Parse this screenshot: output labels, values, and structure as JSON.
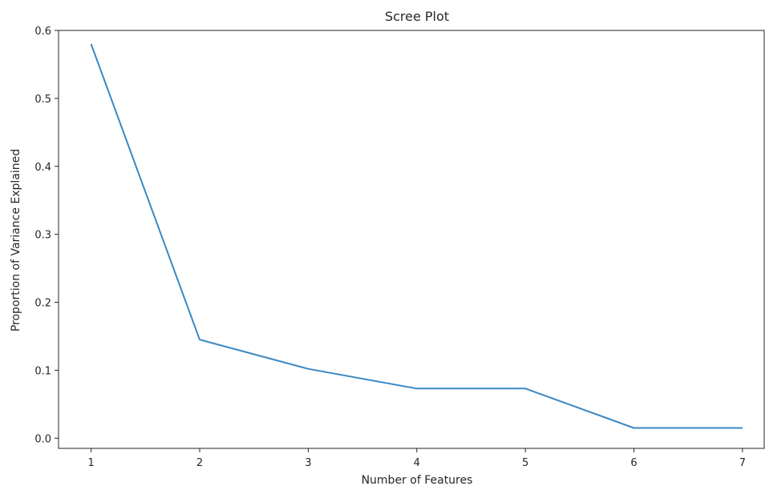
{
  "chart_data": {
    "type": "line",
    "title": "Scree Plot",
    "xlabel": "Number of Features",
    "ylabel": "Proportion of Variance Explained",
    "x": [
      1,
      2,
      3,
      4,
      5,
      6,
      7
    ],
    "series": [
      {
        "values": [
          0.58,
          0.145,
          0.102,
          0.073,
          0.073,
          0.015,
          0.015
        ],
        "color": "#3a87c2"
      }
    ],
    "xlim": [
      0.7,
      7.2
    ],
    "ylim": [
      -0.015,
      0.6
    ],
    "xticks": [
      1,
      2,
      3,
      4,
      5,
      6,
      7
    ],
    "yticks": [
      "0.0",
      "0.1",
      "0.2",
      "0.3",
      "0.4",
      "0.5",
      "0.6"
    ],
    "grid": false,
    "legend": false
  }
}
